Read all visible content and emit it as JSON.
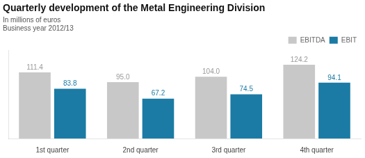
{
  "chart_data": {
    "type": "bar",
    "title": "Quarterly development of the Metal Engineering Division",
    "subtitle": [
      "In millions of euros",
      "Business year 2012/13"
    ],
    "categories": [
      "1st quarter",
      "2nd quarter",
      "3rd quarter",
      "4th quarter"
    ],
    "series": [
      {
        "name": "EBITDA",
        "color": "#c8c8c8",
        "values": [
          111.4,
          95.0,
          104.0,
          124.2
        ],
        "value_labels": [
          "111.4",
          "95.0",
          "104.0",
          "124.2"
        ]
      },
      {
        "name": "EBIT",
        "color": "#1b7ba4",
        "values": [
          83.8,
          67.2,
          74.5,
          94.1
        ],
        "value_labels": [
          "83.8",
          "67.2",
          "74.5",
          "94.1"
        ]
      }
    ],
    "ylim": [
      0,
      148
    ],
    "grid": false,
    "legend": "upper right",
    "data_labels": true,
    "tick_labels": "x"
  }
}
